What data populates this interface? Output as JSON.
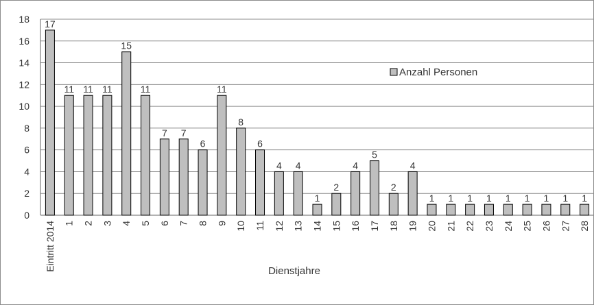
{
  "chart_data": {
    "type": "bar",
    "categories": [
      "Eintritt 2014",
      "1",
      "2",
      "3",
      "4",
      "5",
      "6",
      "7",
      "8",
      "9",
      "10",
      "11",
      "12",
      "13",
      "14",
      "15",
      "16",
      "17",
      "18",
      "19",
      "20",
      "21",
      "22",
      "23",
      "24",
      "25",
      "26",
      "27",
      "28"
    ],
    "series": [
      {
        "name": "Anzahl Personen",
        "values": [
          17,
          11,
          11,
          11,
          15,
          11,
          7,
          7,
          6,
          11,
          8,
          6,
          4,
          4,
          1,
          2,
          4,
          5,
          2,
          4,
          1,
          1,
          1,
          1,
          1,
          1,
          1,
          1,
          1
        ]
      }
    ],
    "xlabel": "Dienstjahre",
    "ylabel": "",
    "ylim": [
      0,
      18
    ],
    "yticks": [
      0,
      2,
      4,
      6,
      8,
      10,
      12,
      14,
      16,
      18
    ],
    "grid": true,
    "legend": "right",
    "colors": {
      "bar_fill": "#bfbfbf",
      "bar_stroke": "#000000",
      "grid": "#8c8c8c",
      "text": "#333333"
    }
  }
}
